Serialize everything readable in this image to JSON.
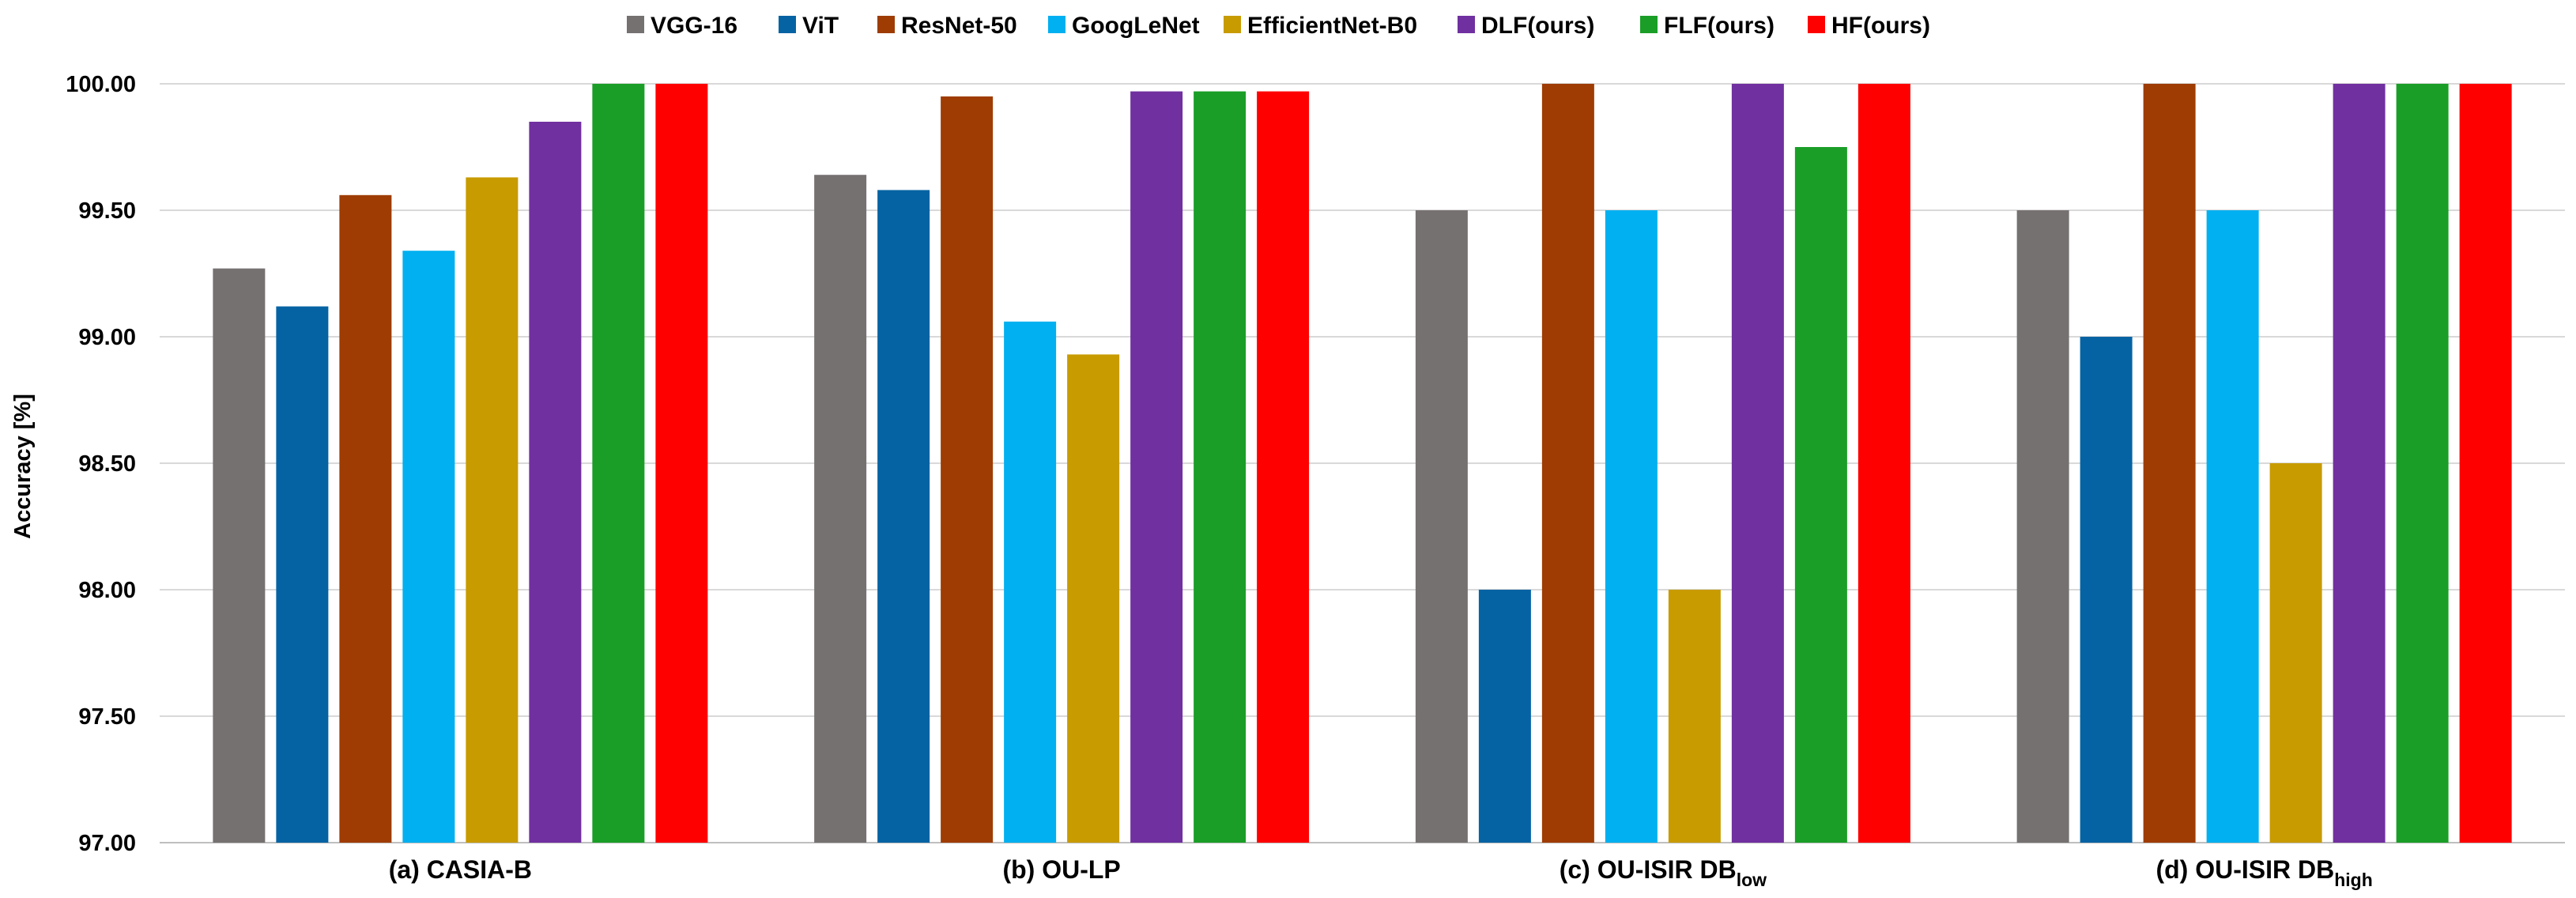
{
  "chart_data": {
    "type": "bar",
    "title": "",
    "xlabel": "",
    "ylabel": "Accuracy [%]",
    "ylim": [
      97.0,
      100.0
    ],
    "yticks": [
      97.0,
      97.5,
      98.0,
      98.5,
      99.0,
      99.5,
      100.0
    ],
    "ytick_labels": [
      "97.00",
      "97.50",
      "98.00",
      "98.50",
      "99.00",
      "99.50",
      "100.00"
    ],
    "grid": true,
    "legend_position": "top-center",
    "categories": [
      {
        "main": "(a) CASIA-B",
        "sub": ""
      },
      {
        "main": "(b) OU-LP",
        "sub": ""
      },
      {
        "main": "(c) OU-ISIR DB",
        "sub": "low"
      },
      {
        "main": "(d) OU-ISIR DB",
        "sub": "high"
      }
    ],
    "series": [
      {
        "name": "VGG-16",
        "color": "#767171",
        "values": [
          99.27,
          99.64,
          99.5,
          99.5
        ]
      },
      {
        "name": "ViT",
        "color": "#0563a3",
        "values": [
          99.12,
          99.58,
          98.0,
          99.0
        ]
      },
      {
        "name": "ResNet-50",
        "color": "#9e3c03",
        "values": [
          99.56,
          99.95,
          100.0,
          100.0
        ]
      },
      {
        "name": "GoogLeNet",
        "color": "#00b0f0",
        "values": [
          99.34,
          99.06,
          99.5,
          99.5
        ]
      },
      {
        "name": "EfficientNet-B0",
        "color": "#c89b00",
        "values": [
          99.63,
          98.93,
          98.0,
          98.5
        ]
      },
      {
        "name": "DLF(ours)",
        "color": "#7030a0",
        "values": [
          99.85,
          99.97,
          100.0,
          100.0
        ]
      },
      {
        "name": "FLF(ours)",
        "color": "#1a9e27",
        "values": [
          100.0,
          99.97,
          99.75,
          100.0
        ]
      },
      {
        "name": "HF(ours)",
        "color": "#ff0000",
        "values": [
          100.0,
          99.97,
          100.0,
          100.0
        ]
      }
    ]
  }
}
